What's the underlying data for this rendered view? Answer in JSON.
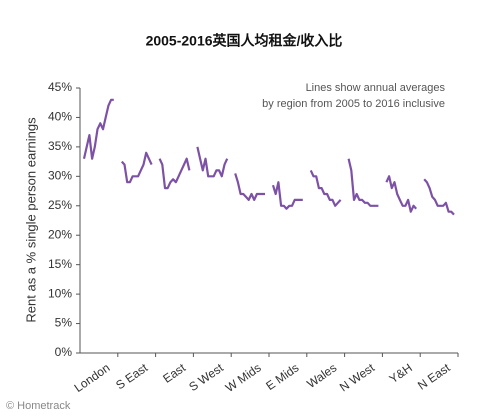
{
  "chart_data": {
    "type": "line",
    "title": "2005-2016英国人均租金/收入比",
    "annotation": [
      "Lines show annual averages",
      "by region from 2005 to 2016 inclusive"
    ],
    "y_label": "Rent as a % single person earnings",
    "source": "© Hometrack",
    "color": "#7d52a6",
    "categories": [
      "London",
      "S East",
      "East",
      "S West",
      "W Mids",
      "E Mids",
      "Wales",
      "N West",
      "Y&H",
      "N East"
    ],
    "values": [
      [
        33,
        35,
        37,
        33,
        35,
        38,
        39,
        38,
        40,
        42,
        43,
        43
      ],
      [
        32.5,
        32,
        29,
        29,
        30,
        30,
        30,
        31,
        32,
        34,
        33,
        32
      ],
      [
        33,
        32,
        28,
        28,
        29,
        29.5,
        29,
        30,
        31,
        32,
        33,
        31
      ],
      [
        35,
        33,
        31,
        33,
        30,
        30,
        30,
        31,
        31,
        30,
        32,
        33
      ],
      [
        30.5,
        29,
        27,
        27,
        26.5,
        26,
        27,
        26,
        27,
        27,
        27,
        27
      ],
      [
        28.5,
        27,
        29,
        25,
        25,
        24.5,
        25,
        25,
        26,
        26,
        26,
        26
      ],
      [
        31,
        30,
        30,
        28,
        28,
        27,
        27,
        26,
        26,
        25,
        25.5,
        26
      ],
      [
        33,
        31,
        26,
        27,
        26,
        26,
        25.5,
        25.5,
        25,
        25,
        25,
        25
      ],
      [
        29,
        30,
        28,
        29,
        27,
        26,
        25,
        25,
        26,
        24,
        25,
        24.5
      ],
      [
        29.5,
        29,
        28,
        26.5,
        26,
        25,
        25,
        25,
        25.5,
        24,
        24,
        23.5
      ]
    ],
    "ylim": [
      0,
      45
    ],
    "yticks": [
      {
        "value": 0,
        "label": "0%"
      },
      {
        "value": 5,
        "label": "5%"
      },
      {
        "value": 10,
        "label": "10%"
      },
      {
        "value": 15,
        "label": "15%"
      },
      {
        "value": 20,
        "label": "20%"
      },
      {
        "value": 25,
        "label": "25%"
      },
      {
        "value": 30,
        "label": "30%"
      },
      {
        "value": 35,
        "label": "35%"
      },
      {
        "value": 40,
        "label": "40%"
      },
      {
        "value": 45,
        "label": "45%"
      }
    ]
  }
}
